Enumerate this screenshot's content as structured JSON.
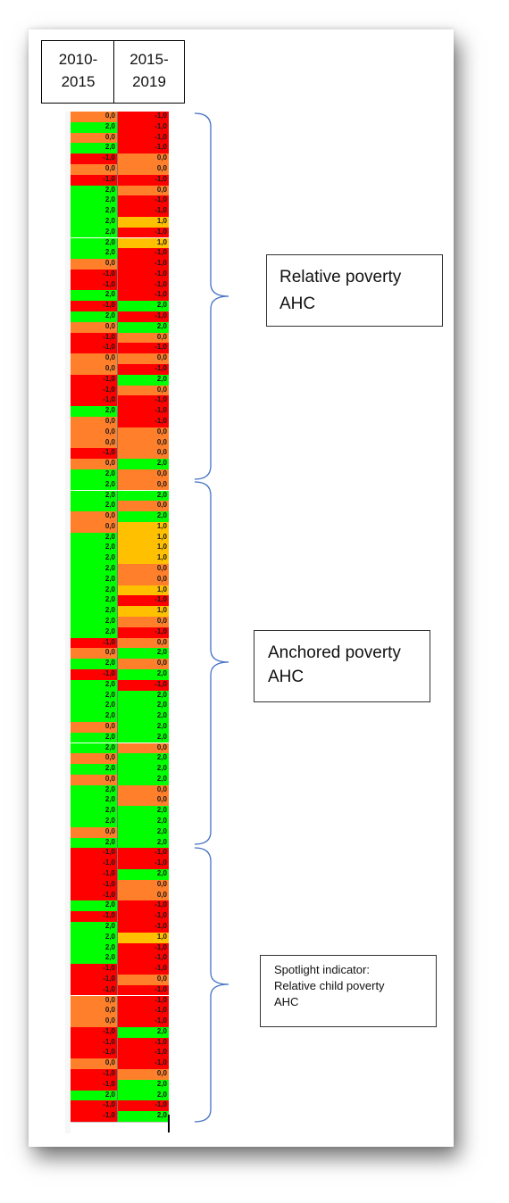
{
  "header": {
    "col1_line1": "2010-",
    "col1_line2": "2015",
    "col2_line1": "2015-",
    "col2_line2": "2019"
  },
  "labels": {
    "relative": {
      "line1": "Relative poverty",
      "line2": "AHC"
    },
    "anchored": {
      "line1": "Anchored poverty",
      "line2": "AHC"
    },
    "spotlight": {
      "line1": "Spotlight indicator:",
      "line2": "Relative child poverty",
      "line3": "AHC"
    }
  },
  "colors": {
    "red": "#ff0000",
    "green": "#00ff00",
    "orange": "#ff7f2a",
    "yellow": "#ffc000",
    "brace": "#4472c4"
  },
  "rows": [
    [
      "0,0",
      "-1,0"
    ],
    [
      "2,0",
      "-1,0"
    ],
    [
      "0,0",
      "-1,0"
    ],
    [
      "2,0",
      "-1,0"
    ],
    [
      "-1,0",
      "0,0"
    ],
    [
      "0,0",
      "0,0"
    ],
    [
      "-1,0",
      "-1,0"
    ],
    [
      "2,0",
      "0,0"
    ],
    [
      "2,0",
      "-1,0"
    ],
    [
      "2,0",
      "-1,0"
    ],
    [
      "2,0",
      "1,0"
    ],
    [
      "2,0",
      "-1,0"
    ],
    [
      "2,0",
      "1,0"
    ],
    [
      "2,0",
      "-1,0"
    ],
    [
      "0,0",
      "-1,0"
    ],
    [
      "-1,0",
      "-1,0"
    ],
    [
      "-1,0",
      "-1,0"
    ],
    [
      "2,0",
      "-1,0"
    ],
    [
      "-1,0",
      "2,0"
    ],
    [
      "2,0",
      "-1,0"
    ],
    [
      "0,0",
      "2,0"
    ],
    [
      "-1,0",
      "0,0"
    ],
    [
      "-1,0",
      "-1,0"
    ],
    [
      "0,0",
      "0,0"
    ],
    [
      "0,0",
      "-1,0"
    ],
    [
      "-1,0",
      "2,0"
    ],
    [
      "-1,0",
      "0,0"
    ],
    [
      "-1,0",
      "-1,0"
    ],
    [
      "2,0",
      "-1,0"
    ],
    [
      "0,0",
      "-1,0"
    ],
    [
      "0,0",
      "0,0"
    ],
    [
      "0,0",
      "0,0"
    ],
    [
      "-1,0",
      "0,0"
    ],
    [
      "0,0",
      "2,0"
    ],
    [
      "2,0",
      "0,0"
    ],
    [
      "2,0",
      "0,0"
    ],
    [
      "2,0",
      "2,0"
    ],
    [
      "2,0",
      "0,0"
    ],
    [
      "0,0",
      "2,0"
    ],
    [
      "0,0",
      "1,0"
    ],
    [
      "2,0",
      "1,0"
    ],
    [
      "2,0",
      "1,0"
    ],
    [
      "2,0",
      "1,0"
    ],
    [
      "2,0",
      "0,0"
    ],
    [
      "2,0",
      "0,0"
    ],
    [
      "2,0",
      "1,0"
    ],
    [
      "2,0",
      "-1,0"
    ],
    [
      "2,0",
      "1,0"
    ],
    [
      "2,0",
      "0,0"
    ],
    [
      "2,0",
      "-1,0"
    ],
    [
      "-1,0",
      "0,0"
    ],
    [
      "0,0",
      "2,0"
    ],
    [
      "2,0",
      "0,0"
    ],
    [
      "-1,0",
      "2,0"
    ],
    [
      "2,0",
      "-1,0"
    ],
    [
      "2,0",
      "2,0"
    ],
    [
      "2,0",
      "2,0"
    ],
    [
      "2,0",
      "2,0"
    ],
    [
      "0,0",
      "2,0"
    ],
    [
      "2,0",
      "2,0"
    ],
    [
      "2,0",
      "0,0"
    ],
    [
      "0,0",
      "2,0"
    ],
    [
      "2,0",
      "2,0"
    ],
    [
      "0,0",
      "2,0"
    ],
    [
      "2,0",
      "0,0"
    ],
    [
      "2,0",
      "0,0"
    ],
    [
      "2,0",
      "2,0"
    ],
    [
      "2,0",
      "2,0"
    ],
    [
      "0,0",
      "2,0"
    ],
    [
      "2,0",
      "2,0"
    ],
    [
      "-1,0",
      "-1,0"
    ],
    [
      "-1,0",
      "-1,0"
    ],
    [
      "-1,0",
      "2,0"
    ],
    [
      "-1,0",
      "0,0"
    ],
    [
      "-1,0",
      "0,0"
    ],
    [
      "2,0",
      "-1,0"
    ],
    [
      "-1,0",
      "-1,0"
    ],
    [
      "2,0",
      "-1,0"
    ],
    [
      "2,0",
      "1,0"
    ],
    [
      "2,0",
      "-1,0"
    ],
    [
      "2,0",
      "-1,0"
    ],
    [
      "-1,0",
      "-1,0"
    ],
    [
      "-1,0",
      "0,0"
    ],
    [
      "-1,0",
      "-1,0"
    ],
    [
      "0,0",
      "-1,0"
    ],
    [
      "0,0",
      "-1,0"
    ],
    [
      "0,0",
      "-1,0"
    ],
    [
      "-1,0",
      "2,0"
    ],
    [
      "-1,0",
      "-1,0"
    ],
    [
      "-1,0",
      "-1,0"
    ],
    [
      "0,0",
      "-1,0"
    ],
    [
      "-1,0",
      "0,0"
    ],
    [
      "-1,0",
      "2,0"
    ],
    [
      "2,0",
      "2,0"
    ],
    [
      "-1,0",
      "-1,0"
    ],
    [
      "-1,0",
      "2,0"
    ]
  ]
}
